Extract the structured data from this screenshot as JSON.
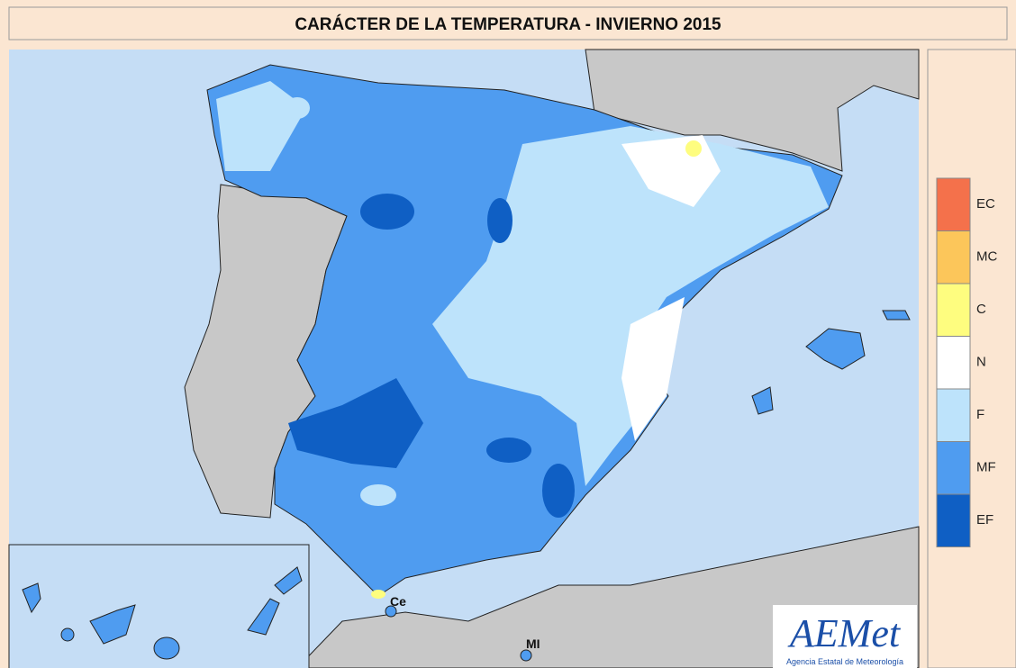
{
  "title": "CARÁCTER DE LA TEMPERATURA - INVIERNO 2015",
  "legend": [
    {
      "label": "EC",
      "color": "#f4714b"
    },
    {
      "label": "MC",
      "color": "#fcc65a"
    },
    {
      "label": "C",
      "color": "#fefd7f"
    },
    {
      "label": "N",
      "color": "#ffffff"
    },
    {
      "label": "F",
      "color": "#bde3fb"
    },
    {
      "label": "MF",
      "color": "#4f9cf0"
    },
    {
      "label": "EF",
      "color": "#0f5fc4"
    }
  ],
  "places": [
    "Ce",
    "MI"
  ],
  "logo": {
    "name": "AEMet",
    "subtitle": "Agencia Estatal de Meteorología"
  }
}
